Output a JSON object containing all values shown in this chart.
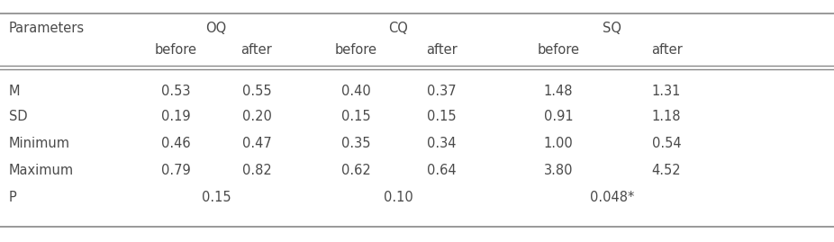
{
  "col_groups": [
    "OQ",
    "CQ",
    "SQ"
  ],
  "sub_headers": [
    "before",
    "after",
    "before",
    "after",
    "before",
    "after"
  ],
  "row_labels": [
    "M",
    "SD",
    "Minimum",
    "Maximum",
    "P"
  ],
  "rows": {
    "M": [
      "0.53",
      "0.55",
      "0.40",
      "0.37",
      "1.48",
      "1.31"
    ],
    "SD": [
      "0.19",
      "0.20",
      "0.15",
      "0.15",
      "0.91",
      "1.18"
    ],
    "Minimum": [
      "0.46",
      "0.47",
      "0.35",
      "0.34",
      "1.00",
      "0.54"
    ],
    "Maximum": [
      "0.79",
      "0.82",
      "0.62",
      "0.64",
      "3.80",
      "4.52"
    ],
    "P": [
      "0.15",
      "0.10",
      "0.048*"
    ]
  },
  "font_color": "#4a4a4a",
  "line_color": "#888888",
  "bg_color": "#ffffff",
  "font_size": 10.5
}
